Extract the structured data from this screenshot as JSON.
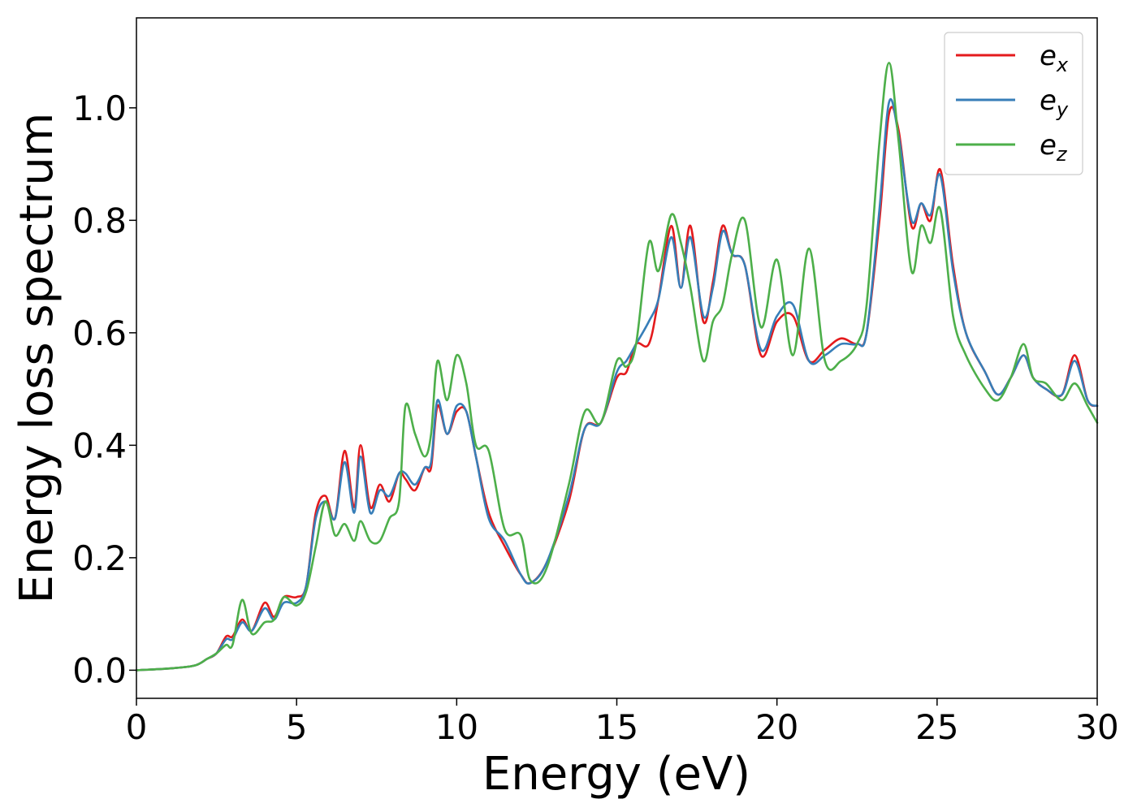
{
  "chart_data": {
    "type": "line",
    "title": "",
    "xlabel": "Energy (eV)",
    "ylabel": "Energy loss spectrum",
    "xlim": [
      0,
      30
    ],
    "ylim": [
      -0.05,
      1.16
    ],
    "xticks": [
      0,
      5,
      10,
      15,
      20,
      25,
      30
    ],
    "yticks": [
      0.0,
      0.2,
      0.4,
      0.6,
      0.8,
      1.0
    ],
    "xtick_labels": [
      "0",
      "5",
      "10",
      "15",
      "20",
      "25",
      "30"
    ],
    "ytick_labels": [
      "0.0",
      "0.2",
      "0.4",
      "0.6",
      "0.8",
      "1.0"
    ],
    "grid": false,
    "legend": {
      "position": "top-right"
    },
    "series": [
      {
        "name": "e",
        "subscript": "x",
        "color": "#e41a1c",
        "x": [
          0,
          1,
          1.8,
          2.2,
          2.5,
          2.8,
          3.0,
          3.3,
          3.6,
          4.0,
          4.3,
          4.6,
          5.0,
          5.3,
          5.6,
          5.9,
          6.2,
          6.5,
          6.8,
          7.0,
          7.3,
          7.6,
          7.9,
          8.2,
          8.4,
          8.7,
          9.0,
          9.2,
          9.4,
          9.7,
          10.0,
          10.3,
          10.6,
          11.0,
          11.5,
          12.0,
          12.3,
          12.8,
          13.5,
          14.0,
          14.5,
          15.0,
          15.3,
          15.6,
          16.0,
          16.3,
          16.7,
          17.0,
          17.3,
          17.7,
          18.0,
          18.3,
          18.6,
          19.0,
          19.5,
          20.0,
          20.5,
          21.0,
          21.5,
          22.0,
          22.5,
          22.8,
          23.2,
          23.5,
          23.8,
          24.2,
          24.5,
          24.8,
          25.1,
          25.5,
          25.9,
          26.5,
          26.9,
          27.3,
          27.7,
          28.0,
          28.4,
          28.9,
          29.3,
          29.7,
          30.0
        ],
        "y": [
          0.0,
          0.003,
          0.008,
          0.02,
          0.03,
          0.06,
          0.06,
          0.09,
          0.07,
          0.12,
          0.095,
          0.13,
          0.13,
          0.15,
          0.28,
          0.31,
          0.27,
          0.39,
          0.29,
          0.4,
          0.29,
          0.33,
          0.3,
          0.35,
          0.34,
          0.32,
          0.36,
          0.36,
          0.47,
          0.42,
          0.46,
          0.46,
          0.38,
          0.28,
          0.22,
          0.17,
          0.155,
          0.19,
          0.3,
          0.43,
          0.44,
          0.52,
          0.53,
          0.58,
          0.58,
          0.66,
          0.79,
          0.68,
          0.79,
          0.62,
          0.69,
          0.79,
          0.74,
          0.72,
          0.56,
          0.62,
          0.63,
          0.55,
          0.57,
          0.59,
          0.58,
          0.6,
          0.8,
          0.99,
          0.96,
          0.79,
          0.83,
          0.8,
          0.89,
          0.72,
          0.6,
          0.53,
          0.49,
          0.52,
          0.56,
          0.52,
          0.5,
          0.49,
          0.56,
          0.48,
          0.47
        ]
      },
      {
        "name": "e",
        "subscript": "y",
        "color": "#377eb8",
        "x": [
          0,
          1,
          1.8,
          2.2,
          2.5,
          2.8,
          3.0,
          3.3,
          3.6,
          4.0,
          4.3,
          4.6,
          5.0,
          5.3,
          5.6,
          5.9,
          6.2,
          6.5,
          6.8,
          7.0,
          7.3,
          7.6,
          7.9,
          8.2,
          8.4,
          8.7,
          9.0,
          9.2,
          9.4,
          9.7,
          10.0,
          10.3,
          10.6,
          11.0,
          11.5,
          12.0,
          12.3,
          12.8,
          13.5,
          14.0,
          14.5,
          15.0,
          15.3,
          15.6,
          16.0,
          16.3,
          16.7,
          17.0,
          17.3,
          17.7,
          18.0,
          18.3,
          18.6,
          19.0,
          19.5,
          20.0,
          20.5,
          21.0,
          21.5,
          22.0,
          22.5,
          22.8,
          23.2,
          23.5,
          23.8,
          24.2,
          24.5,
          24.8,
          25.1,
          25.5,
          25.9,
          26.5,
          26.9,
          27.3,
          27.7,
          28.0,
          28.4,
          28.9,
          29.3,
          29.7,
          30.0
        ],
        "y": [
          0.0,
          0.003,
          0.008,
          0.02,
          0.03,
          0.055,
          0.055,
          0.085,
          0.07,
          0.11,
          0.09,
          0.12,
          0.12,
          0.15,
          0.27,
          0.3,
          0.27,
          0.37,
          0.28,
          0.38,
          0.28,
          0.32,
          0.31,
          0.35,
          0.35,
          0.33,
          0.36,
          0.37,
          0.48,
          0.42,
          0.47,
          0.46,
          0.38,
          0.27,
          0.23,
          0.17,
          0.155,
          0.19,
          0.31,
          0.43,
          0.44,
          0.53,
          0.55,
          0.58,
          0.62,
          0.66,
          0.77,
          0.68,
          0.77,
          0.63,
          0.68,
          0.78,
          0.74,
          0.72,
          0.57,
          0.63,
          0.65,
          0.55,
          0.56,
          0.58,
          0.58,
          0.6,
          0.82,
          1.01,
          0.95,
          0.8,
          0.83,
          0.81,
          0.88,
          0.71,
          0.6,
          0.53,
          0.49,
          0.52,
          0.56,
          0.52,
          0.5,
          0.49,
          0.55,
          0.48,
          0.47
        ]
      },
      {
        "name": "e",
        "subscript": "z",
        "color": "#4daf4a",
        "x": [
          0,
          1,
          1.8,
          2.2,
          2.5,
          2.8,
          3.0,
          3.3,
          3.6,
          4.0,
          4.3,
          4.6,
          5.0,
          5.3,
          5.6,
          5.9,
          6.2,
          6.5,
          6.8,
          7.0,
          7.3,
          7.6,
          7.9,
          8.2,
          8.4,
          8.7,
          9.0,
          9.2,
          9.4,
          9.7,
          10.0,
          10.3,
          10.6,
          11.0,
          11.5,
          12.0,
          12.3,
          12.8,
          13.5,
          14.0,
          14.5,
          15.0,
          15.3,
          15.6,
          16.0,
          16.3,
          16.7,
          17.0,
          17.3,
          17.7,
          18.0,
          18.3,
          18.6,
          19.0,
          19.5,
          20.0,
          20.5,
          21.0,
          21.5,
          22.0,
          22.5,
          22.8,
          23.2,
          23.5,
          23.8,
          24.2,
          24.5,
          24.8,
          25.1,
          25.5,
          25.9,
          26.5,
          26.9,
          27.3,
          27.7,
          28.0,
          28.4,
          28.9,
          29.3,
          29.7,
          30.0
        ],
        "y": [
          0.0,
          0.003,
          0.008,
          0.02,
          0.03,
          0.045,
          0.045,
          0.125,
          0.065,
          0.085,
          0.09,
          0.13,
          0.115,
          0.14,
          0.22,
          0.3,
          0.24,
          0.26,
          0.23,
          0.265,
          0.23,
          0.23,
          0.27,
          0.3,
          0.47,
          0.42,
          0.38,
          0.42,
          0.55,
          0.48,
          0.56,
          0.51,
          0.4,
          0.39,
          0.25,
          0.24,
          0.16,
          0.18,
          0.33,
          0.46,
          0.44,
          0.55,
          0.54,
          0.58,
          0.76,
          0.71,
          0.81,
          0.76,
          0.68,
          0.55,
          0.62,
          0.65,
          0.74,
          0.8,
          0.61,
          0.73,
          0.56,
          0.75,
          0.55,
          0.55,
          0.58,
          0.65,
          0.94,
          1.08,
          0.94,
          0.71,
          0.79,
          0.76,
          0.82,
          0.63,
          0.56,
          0.5,
          0.48,
          0.52,
          0.58,
          0.52,
          0.51,
          0.48,
          0.51,
          0.47,
          0.44
        ]
      }
    ]
  }
}
